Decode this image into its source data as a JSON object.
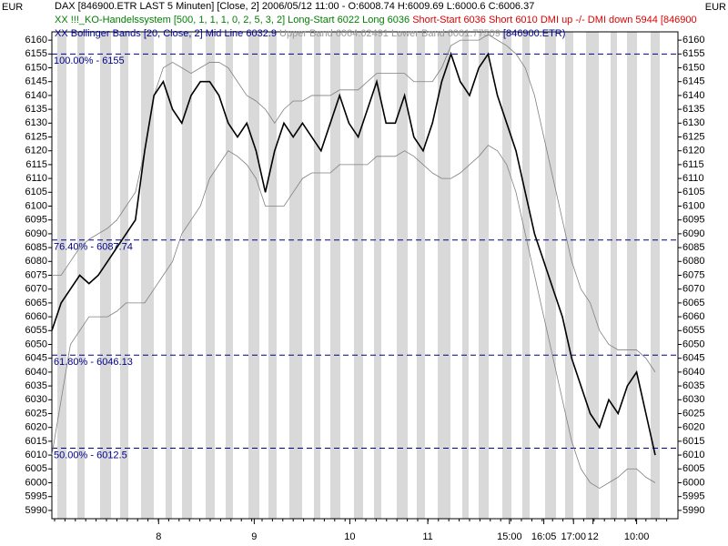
{
  "header": {
    "unit_left": "EUR",
    "unit_right": "EUR",
    "line1": "DAX [846900.ETR LAST 5 Minuten] [Close, 2] 2006/05/12 11:00 - O:6008.74 H:6009.69 L:6000.6 C:6006.37",
    "line2a": "XX !!!_KO-Handelssystem [500, 1, 1, 1, 0, 2, 5, 3, 2] Long-Start 6022 Long 6036",
    "line2b": "Short-Start 6036 Short 6010 DMI up -/- DMI down 5944 [846900",
    "line3a": "XX Bollinger Bands [20, Close, 2] Mid Line 6032.9",
    "line3b": "Upper Band 6064.02491 Lower Band 6001.77509",
    "line3c": "[846900.ETR)"
  },
  "chart_data": {
    "type": "line",
    "xlim": [
      0,
      65
    ],
    "ylim": [
      5987,
      6163
    ],
    "yticks": [
      5990,
      5995,
      6000,
      6005,
      6010,
      6015,
      6020,
      6025,
      6030,
      6035,
      6040,
      6045,
      6050,
      6055,
      6060,
      6065,
      6070,
      6075,
      6080,
      6085,
      6090,
      6095,
      6100,
      6105,
      6110,
      6115,
      6120,
      6125,
      6130,
      6135,
      6140,
      6145,
      6150,
      6155,
      6160
    ],
    "xticks": [
      {
        "value": 11.5,
        "label": "8"
      },
      {
        "value": 21.8,
        "label": "9"
      },
      {
        "value": 32.1,
        "label": "10"
      },
      {
        "value": 40.5,
        "label": "11"
      },
      {
        "value": 49.3,
        "label": "15:00"
      },
      {
        "value": 53.0,
        "label": "16:05"
      },
      {
        "value": 56.2,
        "label": "17:00"
      },
      {
        "value": 58.3,
        "label": "12"
      },
      {
        "value": 63.0,
        "label": "10:00"
      }
    ],
    "levels": [
      {
        "value": 6155,
        "label": "100.00% - 6155"
      },
      {
        "value": 6087.74,
        "label": "76.40% - 6087.74"
      },
      {
        "value": 6046.13,
        "label": "61.80% - 6046.13"
      },
      {
        "value": 6012.5,
        "label": "50.00% - 6012.5"
      }
    ],
    "level_color": "#00008b",
    "series": [
      {
        "color": "#000000",
        "values": [
          6055,
          6065,
          6070,
          6075,
          6072,
          6075,
          6080,
          6085,
          6090,
          6095,
          6120,
          6140,
          6145,
          6135,
          6130,
          6140,
          6145,
          6145,
          6140,
          6130,
          6125,
          6130,
          6120,
          6105,
          6120,
          6130,
          6125,
          6130,
          6125,
          6120,
          6130,
          6140,
          6130,
          6125,
          6135,
          6145,
          6130,
          6130,
          6140,
          6125,
          6120,
          6130,
          6145,
          6155,
          6145,
          6140,
          6150,
          6155,
          6140,
          6130,
          6120,
          6105,
          6090,
          6080,
          6070,
          6060,
          6045,
          6035,
          6025,
          6020,
          6030,
          6025,
          6035,
          6040,
          6025,
          6010
        ]
      },
      {
        "color": "#808080",
        "values": [
          6075,
          6075,
          6080,
          6085,
          6088,
          6090,
          6092,
          6095,
          6100,
          6105,
          6120,
          6140,
          6150,
          6152,
          6150,
          6148,
          6150,
          6152,
          6152,
          6150,
          6145,
          6140,
          6138,
          6135,
          6130,
          6135,
          6138,
          6138,
          6140,
          6140,
          6140,
          6142,
          6142,
          6142,
          6145,
          6148,
          6148,
          6148,
          6148,
          6145,
          6145,
          6145,
          6150,
          6158,
          6160,
          6160,
          6160,
          6162,
          6160,
          6158,
          6155,
          6150,
          6140,
          6125,
          6110,
          6095,
          6080,
          6070,
          6065,
          6055,
          6050,
          6048,
          6048,
          6048,
          6045,
          6040
        ]
      },
      {
        "color": "#808080",
        "values": [
          6010,
          6030,
          6050,
          6055,
          6060,
          6060,
          6060,
          6062,
          6065,
          6065,
          6065,
          6070,
          6075,
          6080,
          6090,
          6095,
          6100,
          6110,
          6115,
          6120,
          6118,
          6115,
          6110,
          6100,
          6100,
          6100,
          6105,
          6110,
          6112,
          6112,
          6112,
          6115,
          6115,
          6115,
          6115,
          6118,
          6118,
          6118,
          6120,
          6118,
          6115,
          6112,
          6110,
          6110,
          6112,
          6115,
          6118,
          6122,
          6120,
          6115,
          6105,
          6090,
          6075,
          6060,
          6045,
          6030,
          6015,
          6005,
          6000,
          5998,
          6000,
          6002,
          6005,
          6005,
          6002,
          6000
        ]
      }
    ]
  }
}
